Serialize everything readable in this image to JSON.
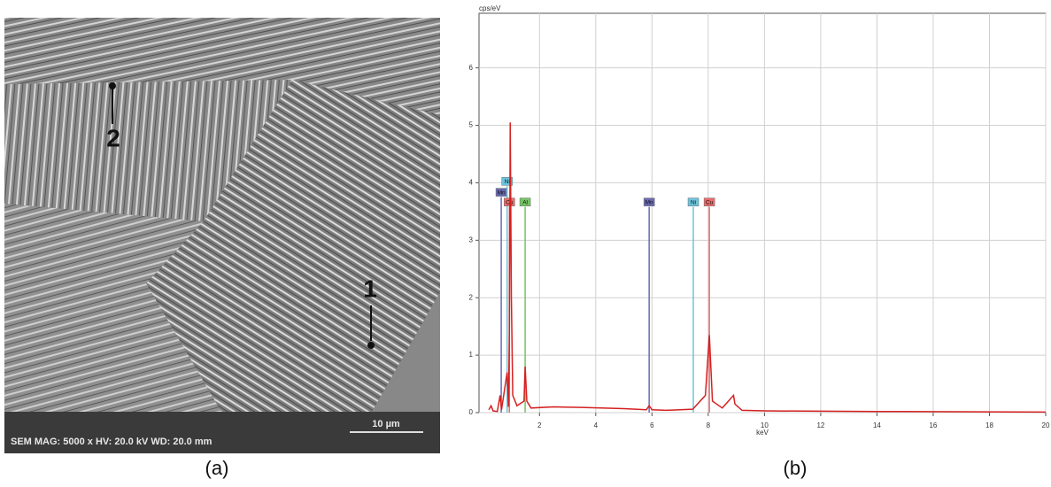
{
  "image_panel": {
    "marker_2": "2",
    "marker_1": "1",
    "scale_bar": "10 µm",
    "info_bar": "SEM  MAG: 5000 x  HV: 20.0 kV  WD: 20.0 mm",
    "caption": "(a)"
  },
  "chart_data": {
    "type": "line",
    "caption": "(b)",
    "y_label": "cps/eV",
    "x_label": "keV",
    "xlim": [
      -0.15,
      20
    ],
    "ylim": [
      0,
      6.95
    ],
    "xticks": [
      2,
      4,
      6,
      8,
      10,
      12,
      14,
      16,
      18,
      20
    ],
    "yticks": [
      0,
      1,
      2,
      3,
      4,
      5,
      6
    ],
    "grid": true,
    "series": [
      {
        "color": "#d42020",
        "x": [
          0.2,
          0.28,
          0.35,
          0.5,
          0.6,
          0.65,
          0.85,
          0.9,
          0.93,
          0.96,
          1.0,
          1.05,
          1.2,
          1.45,
          1.49,
          1.55,
          1.7,
          2.5,
          3.5,
          5.0,
          5.8,
          5.9,
          6.0,
          6.5,
          7.45,
          7.9,
          8.04,
          8.15,
          8.5,
          8.9,
          8.95,
          9.2,
          10,
          14,
          20
        ],
        "values": [
          0.05,
          0.12,
          0.03,
          0.02,
          0.3,
          0.05,
          0.7,
          0.1,
          1.5,
          5.05,
          2.0,
          0.3,
          0.12,
          0.2,
          0.8,
          0.2,
          0.08,
          0.1,
          0.09,
          0.07,
          0.05,
          0.12,
          0.05,
          0.04,
          0.06,
          0.3,
          1.35,
          0.2,
          0.08,
          0.3,
          0.15,
          0.04,
          0.03,
          0.02,
          0.01
        ]
      }
    ],
    "markers": [
      {
        "name": "Mn",
        "x": 0.64,
        "height": 3.75,
        "color": "#6a6ab4"
      },
      {
        "name": "Ni",
        "x": 0.85,
        "height": 3.94,
        "color": "#6cc4dc"
      },
      {
        "name": "Cu",
        "x": 0.93,
        "height": 3.58,
        "color": "#ec6a6a"
      },
      {
        "name": "Al",
        "x": 1.49,
        "height": 3.58,
        "color": "#74c464"
      },
      {
        "name": "Mn",
        "x": 5.9,
        "height": 3.58,
        "color": "#6a6ab4"
      },
      {
        "name": "Ni",
        "x": 7.47,
        "height": 3.58,
        "color": "#6cc4dc"
      },
      {
        "name": "Cu",
        "x": 8.04,
        "height": 3.58,
        "color": "#ec6a6a"
      }
    ]
  }
}
